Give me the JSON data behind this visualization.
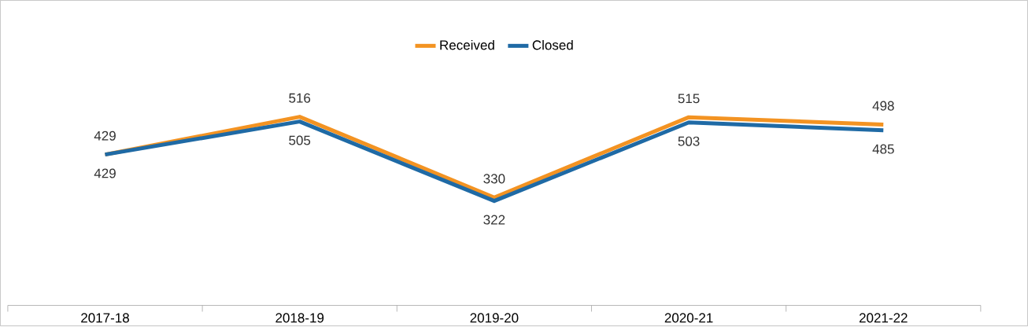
{
  "chart_data": {
    "type": "line",
    "categories": [
      "2017-18",
      "2018-19",
      "2019-20",
      "2020-21",
      "2021-22"
    ],
    "series": [
      {
        "name": "Received",
        "color": "#f39322",
        "values": [
          429,
          516,
          330,
          515,
          498
        ]
      },
      {
        "name": "Closed",
        "color": "#1f6aa5",
        "values": [
          429,
          505,
          322,
          503,
          485
        ]
      }
    ],
    "data_labels": true,
    "legend": "top",
    "marker": "none",
    "line_style": "solid"
  }
}
